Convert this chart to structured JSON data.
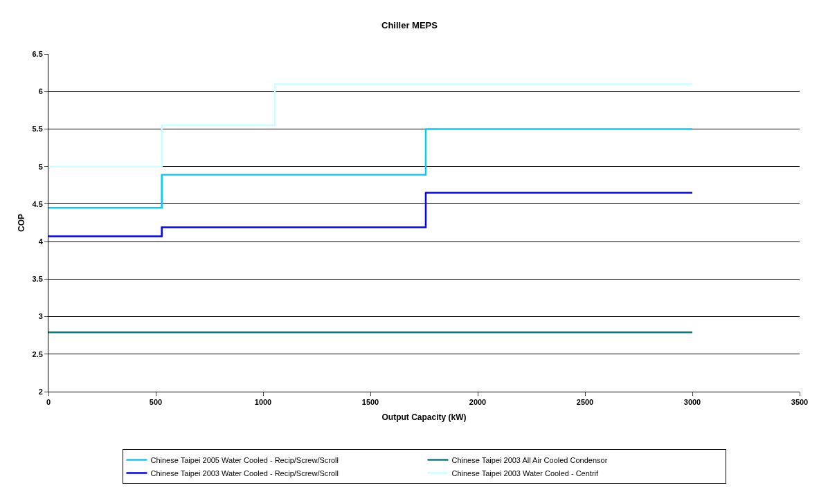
{
  "chart_data": {
    "type": "step",
    "title": "Chiller MEPS",
    "xlabel": "Output Capacity (kW)",
    "ylabel": "COP",
    "xlim": [
      0,
      3500
    ],
    "xticks": [
      0,
      500,
      1000,
      1500,
      2000,
      2500,
      3000,
      3500
    ],
    "ylim": [
      2,
      6.5
    ],
    "yticks": [
      2,
      2.5,
      3,
      3.5,
      4,
      4.5,
      5,
      5.5,
      6,
      6.5
    ],
    "grid": "y",
    "legend": "bottom",
    "marker": "none",
    "line_style": "solid",
    "series": [
      {
        "name": "Chinese Taipei 2005 Water Cooled - Recip/Screw/Scroll",
        "color": "#00ccff",
        "x": [
          0,
          528,
          1758,
          3000
        ],
        "values": [
          4.45,
          4.89,
          5.5,
          5.5
        ]
      },
      {
        "name": "Chinese Taipei 2003 All Air Cooled Condensor",
        "color": "#008080",
        "x": [
          0,
          3000
        ],
        "values": [
          2.79,
          2.79
        ]
      },
      {
        "name": "Chinese Taipei 2003 Water Cooled - Recip/Screw/Scroll",
        "color": "#0000ff",
        "x": [
          0,
          528,
          1758,
          3000
        ],
        "values": [
          4.07,
          4.19,
          4.65,
          4.65
        ]
      },
      {
        "name": "Chinese Taipei 2003 Water Cooled - Centrif",
        "color": "#ccffff",
        "x": [
          0,
          528,
          1055,
          3000
        ],
        "values": [
          5,
          5.55,
          6.1,
          6.1
        ]
      }
    ]
  }
}
